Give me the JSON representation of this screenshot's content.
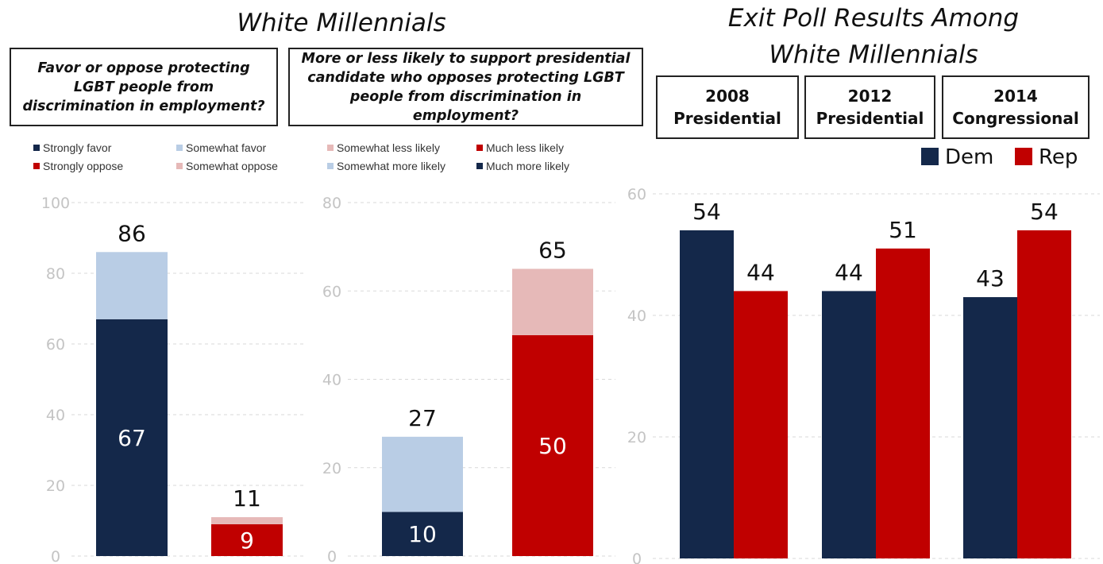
{
  "colors": {
    "navy": "#14284a",
    "light_blue": "#b9cde5",
    "red": "#c00000",
    "pink": "#e6b9b8",
    "grid": "#d9d9d9",
    "tick": "#c4c4c4"
  },
  "header": {
    "left_title": "White Millennials",
    "right_title_line1": "Exit Poll Results Among",
    "right_title_line2": "White Millennials"
  },
  "questions": {
    "q1": "Favor or oppose protecting\nLGBT people from\ndiscrimination in employment?",
    "q2": "More or less likely to support presidential\ncandidate who opposes protecting LGBT\npeople from discrimination in employment?"
  },
  "years": [
    {
      "year": "2008",
      "type": "Presidential"
    },
    {
      "year": "2012",
      "type": "Presidential"
    },
    {
      "year": "2014",
      "type": "Congressional"
    }
  ],
  "legend1": {
    "strongly_favor": "Strongly favor",
    "somewhat_favor": "Somewhat favor",
    "strongly_oppose": "Strongly oppose",
    "somewhat_oppose": "Somewhat oppose"
  },
  "legend2": {
    "somewhat_less": "Somewhat less likely",
    "much_less": "Much less likely",
    "somewhat_more": "Somewhat more likely",
    "much_more": "Much more likely"
  },
  "legend3": {
    "dem": "Dem",
    "rep": "Rep"
  },
  "chart_data": [
    {
      "type": "bar",
      "stacked": true,
      "ylim": [
        0,
        100
      ],
      "yticks": [
        0,
        20,
        40,
        60,
        80,
        100
      ],
      "grid": true,
      "bars": [
        {
          "segments": [
            {
              "name": "Strongly favor",
              "value": 67,
              "label": "67",
              "color": "navy"
            },
            {
              "name": "Somewhat favor",
              "value": 19,
              "color": "light_blue"
            }
          ],
          "total_label": "86"
        },
        {
          "segments": [
            {
              "name": "Strongly oppose",
              "value": 9,
              "label": "9",
              "color": "red"
            },
            {
              "name": "Somewhat oppose",
              "value": 2,
              "color": "pink"
            }
          ],
          "total_label": "11"
        }
      ]
    },
    {
      "type": "bar",
      "stacked": true,
      "ylim": [
        0,
        80
      ],
      "yticks": [
        0,
        20,
        40,
        60,
        80
      ],
      "grid": true,
      "bars": [
        {
          "segments": [
            {
              "name": "Much more likely",
              "value": 10,
              "label": "10",
              "color": "navy"
            },
            {
              "name": "Somewhat more likely",
              "value": 17,
              "color": "light_blue"
            }
          ],
          "total_label": "27"
        },
        {
          "segments": [
            {
              "name": "Much less likely",
              "value": 50,
              "label": "50",
              "color": "red"
            },
            {
              "name": "Somewhat less likely",
              "value": 15,
              "color": "pink"
            }
          ],
          "total_label": "65"
        }
      ]
    },
    {
      "type": "bar",
      "ylim": [
        0,
        60
      ],
      "yticks": [
        0,
        20,
        40,
        60
      ],
      "grid": true,
      "legend": "top-right",
      "categories": [
        "2008 Presidential",
        "2012 Presidential",
        "2014 Congressional"
      ],
      "series": [
        {
          "name": "Dem",
          "values": [
            54,
            44,
            43
          ],
          "color": "navy"
        },
        {
          "name": "Rep",
          "values": [
            44,
            51,
            54
          ],
          "color": "red"
        }
      ]
    }
  ]
}
